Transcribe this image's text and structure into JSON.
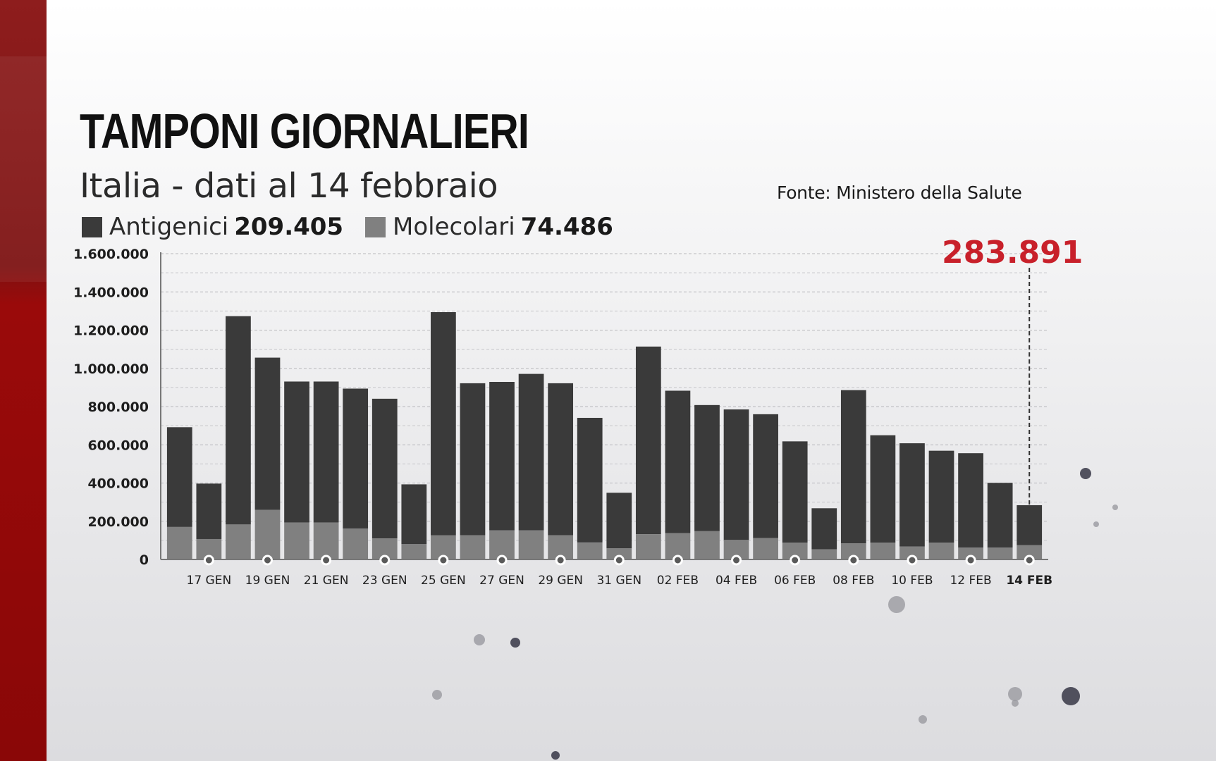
{
  "title": "TAMPONI GIORNALIERI",
  "subtitle": "Italia - dati al 14 febbraio",
  "source": "Fonte: Ministero della Salute",
  "legend": {
    "antigen_label": "Antigenici",
    "antigen_value": "209.405",
    "molecular_label": "Molecolari",
    "molecular_value": "74.486"
  },
  "highlight_total": "283.891",
  "colors": {
    "antigenic": "#3a3a3a",
    "molecular": "#808080",
    "highlight": "#c8202a",
    "brand_band": "#8a0a0a"
  },
  "chart_data": {
    "type": "bar",
    "stacked": true,
    "categories": [
      "16 GEN",
      "17 GEN",
      "18 GEN",
      "19 GEN",
      "20 GEN",
      "21 GEN",
      "22 GEN",
      "23 GEN",
      "24 GEN",
      "25 GEN",
      "26 GEN",
      "27 GEN",
      "28 GEN",
      "29 GEN",
      "30 GEN",
      "31 GEN",
      "01 FEB",
      "02 FEB",
      "03 FEB",
      "04 FEB",
      "05 FEB",
      "06 FEB",
      "07 FEB",
      "08 FEB",
      "09 FEB",
      "10 FEB",
      "11 FEB",
      "12 FEB",
      "13 FEB",
      "14 FEB"
    ],
    "tick_labels": [
      "17 GEN",
      "19 GEN",
      "21 GEN",
      "23 GEN",
      "25 GEN",
      "27 GEN",
      "29 GEN",
      "31 GEN",
      "02 FEB",
      "04 FEB",
      "06 FEB",
      "08 FEB",
      "10 FEB",
      "12 FEB",
      "14 FEB"
    ],
    "series": [
      {
        "name": "Molecolari",
        "values": [
          170000,
          107000,
          183000,
          260000,
          193000,
          193000,
          162000,
          110000,
          80000,
          126000,
          127000,
          152000,
          152000,
          127000,
          89000,
          58000,
          132000,
          138000,
          148000,
          102000,
          112000,
          88000,
          53000,
          84000,
          88000,
          68000,
          88000,
          62000,
          62000,
          74486
        ]
      },
      {
        "name": "Antigenici",
        "values": [
          522000,
          290000,
          1090000,
          796000,
          738000,
          738000,
          732000,
          731000,
          313000,
          1168000,
          795000,
          777000,
          819000,
          795000,
          652000,
          291000,
          982000,
          745000,
          660000,
          683000,
          648000,
          530000,
          215000,
          802000,
          562000,
          540000,
          481000,
          494000,
          339000,
          209405
        ]
      }
    ],
    "yticks": [
      "0",
      "200.000",
      "400.000",
      "600.000",
      "800.000",
      "1.000.000",
      "1.200.000",
      "1.400.000",
      "1.600.000"
    ],
    "ylim": [
      0,
      1600000
    ],
    "grid": true,
    "annotation": {
      "category": "14 FEB",
      "text": "283.891"
    }
  }
}
